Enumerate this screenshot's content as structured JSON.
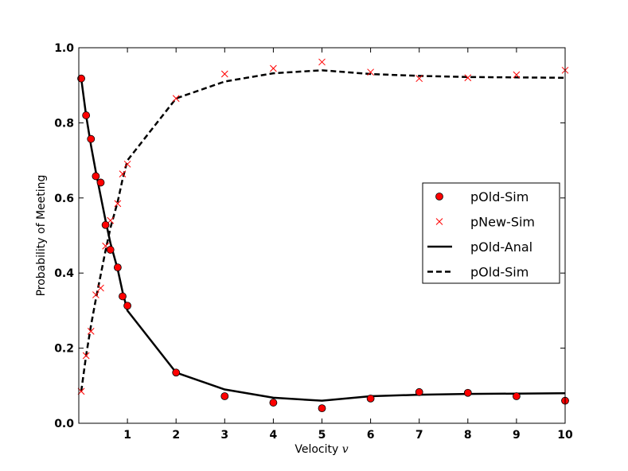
{
  "chart_data": {
    "type": "line",
    "title": "",
    "xlabel": "Velocity",
    "xlabel_var": "v",
    "ylabel": "Probability of Meeting",
    "xlim": [
      0,
      10
    ],
    "ylim": [
      0.0,
      1.0
    ],
    "x_ticks": [
      1,
      2,
      3,
      4,
      5,
      6,
      7,
      8,
      9,
      10
    ],
    "x_tick_labels": [
      "1",
      "2",
      "3",
      "4",
      "5",
      "6",
      "7",
      "8",
      "9",
      "10"
    ],
    "y_ticks": [
      0.0,
      0.2,
      0.4,
      0.6,
      0.8,
      1.0
    ],
    "y_tick_labels": [
      "0.0",
      "0.2",
      "0.4",
      "0.6",
      "0.8",
      "1.0"
    ],
    "grid": false,
    "legend_position": "center-right",
    "series": [
      {
        "name": "pOld-Sim",
        "style": "marker-circle",
        "color": "#ff0000",
        "edge_color": "#000000",
        "x": [
          0.05,
          0.15,
          0.25,
          0.35,
          0.45,
          0.55,
          0.65,
          0.8,
          0.9,
          1.0,
          2,
          3,
          4,
          5,
          6,
          7,
          8,
          9,
          10
        ],
        "y": [
          0.918,
          0.82,
          0.757,
          0.658,
          0.641,
          0.528,
          0.462,
          0.415,
          0.338,
          0.313,
          0.135,
          0.072,
          0.055,
          0.04,
          0.066,
          0.083,
          0.081,
          0.072,
          0.06
        ]
      },
      {
        "name": "pNew-Sim",
        "style": "marker-x",
        "color": "#ff0000",
        "x": [
          0.05,
          0.15,
          0.25,
          0.35,
          0.45,
          0.55,
          0.65,
          0.8,
          0.9,
          1.0,
          2,
          3,
          4,
          5,
          6,
          7,
          8,
          9,
          10
        ],
        "y": [
          0.085,
          0.18,
          0.245,
          0.342,
          0.36,
          0.472,
          0.54,
          0.585,
          0.664,
          0.69,
          0.865,
          0.93,
          0.945,
          0.962,
          0.935,
          0.918,
          0.92,
          0.928,
          0.94
        ]
      },
      {
        "name": "pOld-Anal",
        "style": "solid",
        "color": "#000000",
        "x": [
          0.05,
          0.15,
          0.25,
          0.35,
          0.45,
          0.55,
          0.65,
          0.8,
          0.9,
          1.0,
          2,
          3,
          4,
          5,
          6,
          7,
          8,
          9,
          10
        ],
        "y": [
          0.918,
          0.82,
          0.74,
          0.67,
          0.605,
          0.54,
          0.48,
          0.41,
          0.35,
          0.3,
          0.135,
          0.09,
          0.068,
          0.06,
          0.072,
          0.076,
          0.078,
          0.079,
          0.08
        ]
      },
      {
        "name": "pOld-Sim",
        "style": "dashed",
        "color": "#000000",
        "x": [
          0.05,
          0.15,
          0.25,
          0.35,
          0.45,
          0.55,
          0.65,
          0.8,
          0.9,
          1.0,
          2,
          3,
          4,
          5,
          6,
          7,
          8,
          9,
          10
        ],
        "y": [
          0.085,
          0.18,
          0.26,
          0.33,
          0.395,
          0.46,
          0.52,
          0.59,
          0.65,
          0.7,
          0.865,
          0.91,
          0.932,
          0.94,
          0.93,
          0.925,
          0.922,
          0.921,
          0.92
        ]
      }
    ]
  }
}
